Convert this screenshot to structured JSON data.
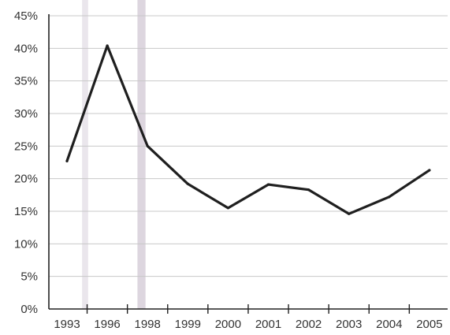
{
  "chart_data": {
    "type": "line",
    "title": "",
    "xlabel": "",
    "ylabel": "",
    "categories": [
      "1993",
      "1996",
      "1998",
      "1999",
      "2000",
      "2001",
      "2002",
      "2003",
      "2004",
      "2005"
    ],
    "y_tick_labels": [
      "0%",
      "5%",
      "10%",
      "15%",
      "20%",
      "25%",
      "30%",
      "35%",
      "40%",
      "45%"
    ],
    "y_ticks": [
      0,
      5,
      10,
      15,
      20,
      25,
      30,
      35,
      40,
      45
    ],
    "ylim": [
      0,
      45
    ],
    "grid": true,
    "series": [
      {
        "values": [
          22.7,
          40.4,
          25.0,
          19.2,
          15.5,
          19.1,
          18.3,
          14.6,
          17.2,
          21.3
        ]
      }
    ],
    "colors": {
      "line": "#1f1f1f",
      "grid": "#c8c8c8",
      "axis": "#222222",
      "text": "#333333",
      "highlight_band": "#d9d2dc"
    },
    "highlight_bands": [
      {
        "near_category": "1996",
        "offset": -0.55,
        "width": 0.15,
        "opacity": 0.55
      },
      {
        "near_category": "1998",
        "offset": -0.15,
        "width": 0.2,
        "opacity": 0.9
      }
    ]
  }
}
